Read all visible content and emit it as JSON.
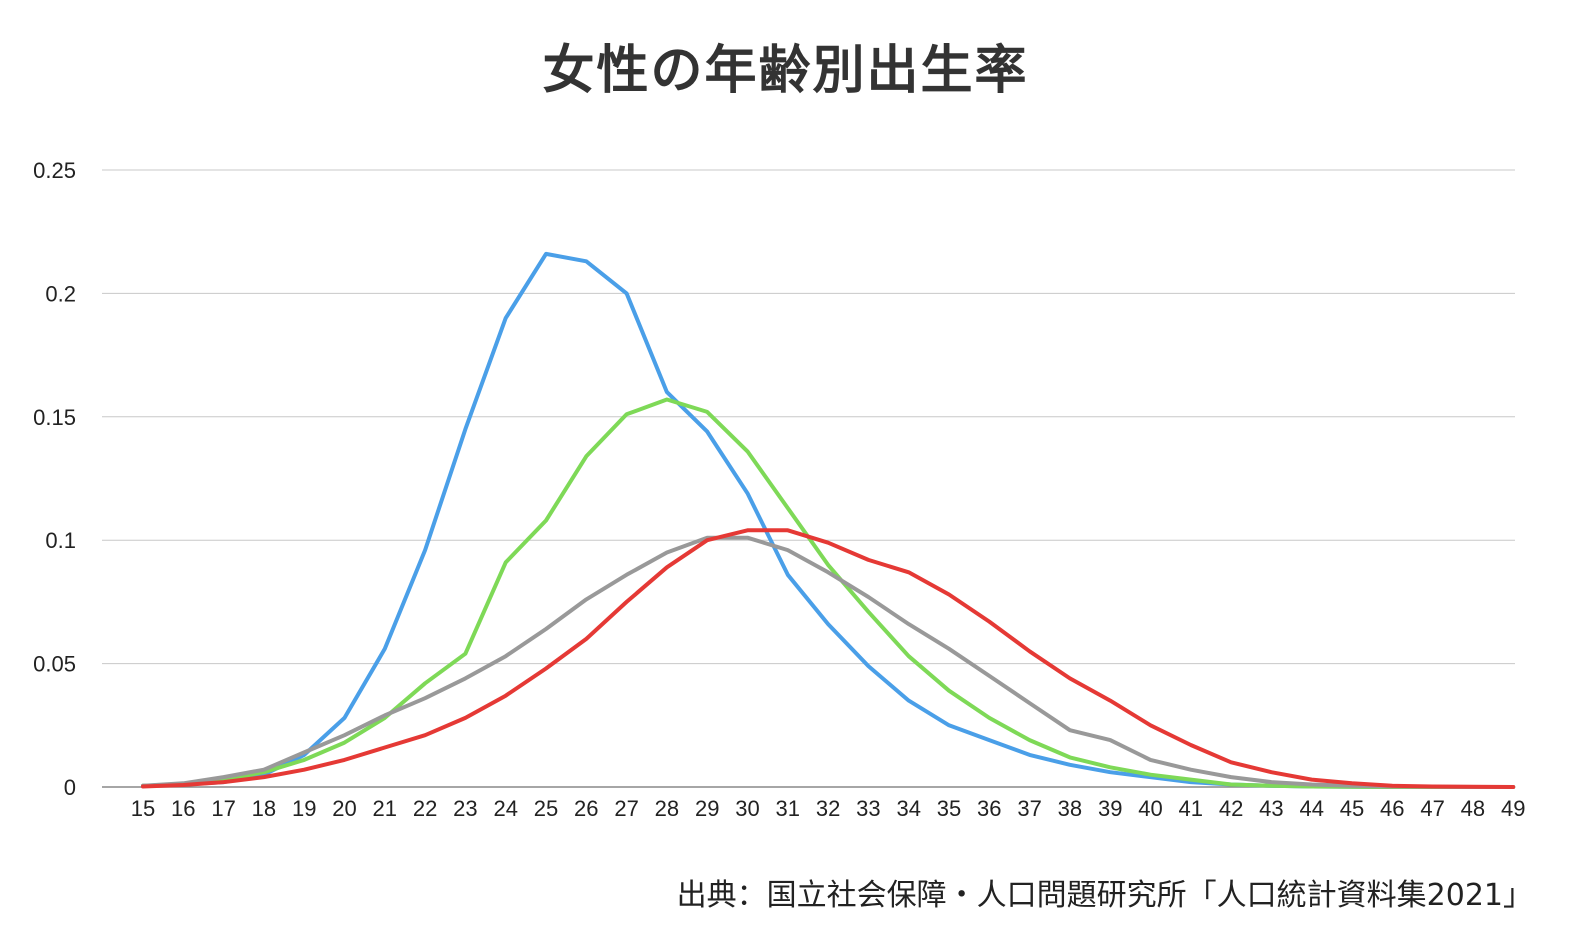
{
  "chart_data": {
    "type": "line",
    "title": "女性の年齢別出生率",
    "xlabel": "",
    "ylabel": "",
    "x": [
      15,
      16,
      17,
      18,
      19,
      20,
      21,
      22,
      23,
      24,
      25,
      26,
      27,
      28,
      29,
      30,
      31,
      32,
      33,
      34,
      35,
      36,
      37,
      38,
      39,
      40,
      41,
      42,
      43,
      44,
      45,
      46,
      47,
      48,
      49
    ],
    "ylim": [
      0,
      0.25
    ],
    "yticks": [
      0,
      0.05,
      0.1,
      0.15,
      0.2,
      0.25
    ],
    "ytick_labels": [
      "0",
      "0.05",
      "0.1",
      "0.15",
      "0.2",
      "0.25"
    ],
    "grid": true,
    "legend": "none",
    "series": [
      {
        "color": "#4a9fe8",
        "values": [
          0.0005,
          0.001,
          0.002,
          0.005,
          0.013,
          0.028,
          0.056,
          0.096,
          0.145,
          0.19,
          0.216,
          0.213,
          0.2,
          0.16,
          0.144,
          0.119,
          0.086,
          0.066,
          0.049,
          0.035,
          0.025,
          0.019,
          0.013,
          0.009,
          0.006,
          0.004,
          0.002,
          0.001,
          0.0005,
          0.0002,
          0.0001,
          0,
          0,
          0,
          0
        ]
      },
      {
        "color": "#7ed957",
        "values": [
          0.0005,
          0.001,
          0.003,
          0.006,
          0.011,
          0.018,
          0.028,
          0.042,
          0.054,
          0.091,
          0.108,
          0.134,
          0.151,
          0.157,
          0.152,
          0.136,
          0.113,
          0.09,
          0.071,
          0.053,
          0.039,
          0.028,
          0.019,
          0.012,
          0.008,
          0.005,
          0.003,
          0.001,
          0.0005,
          0.0002,
          0.0001,
          0,
          0,
          0,
          0
        ]
      },
      {
        "color": "#999999",
        "values": [
          0.0005,
          0.0015,
          0.004,
          0.007,
          0.014,
          0.021,
          0.029,
          0.036,
          0.044,
          0.053,
          0.064,
          0.076,
          0.086,
          0.095,
          0.101,
          0.101,
          0.096,
          0.087,
          0.077,
          0.066,
          0.056,
          0.045,
          0.034,
          0.023,
          0.019,
          0.011,
          0.007,
          0.004,
          0.002,
          0.001,
          0.0005,
          0.0002,
          0.0001,
          0,
          0
        ]
      },
      {
        "color": "#e53935",
        "values": [
          0.0002,
          0.0008,
          0.002,
          0.004,
          0.007,
          0.011,
          0.016,
          0.021,
          0.028,
          0.037,
          0.048,
          0.06,
          0.075,
          0.089,
          0.1,
          0.104,
          0.104,
          0.099,
          0.092,
          0.087,
          0.078,
          0.067,
          0.055,
          0.044,
          0.035,
          0.025,
          0.017,
          0.01,
          0.006,
          0.003,
          0.0015,
          0.0005,
          0.0002,
          0.0001,
          0
        ]
      }
    ]
  },
  "source": "出典：国立社会保障・人口問題研究所「人口統計資料集2021」"
}
